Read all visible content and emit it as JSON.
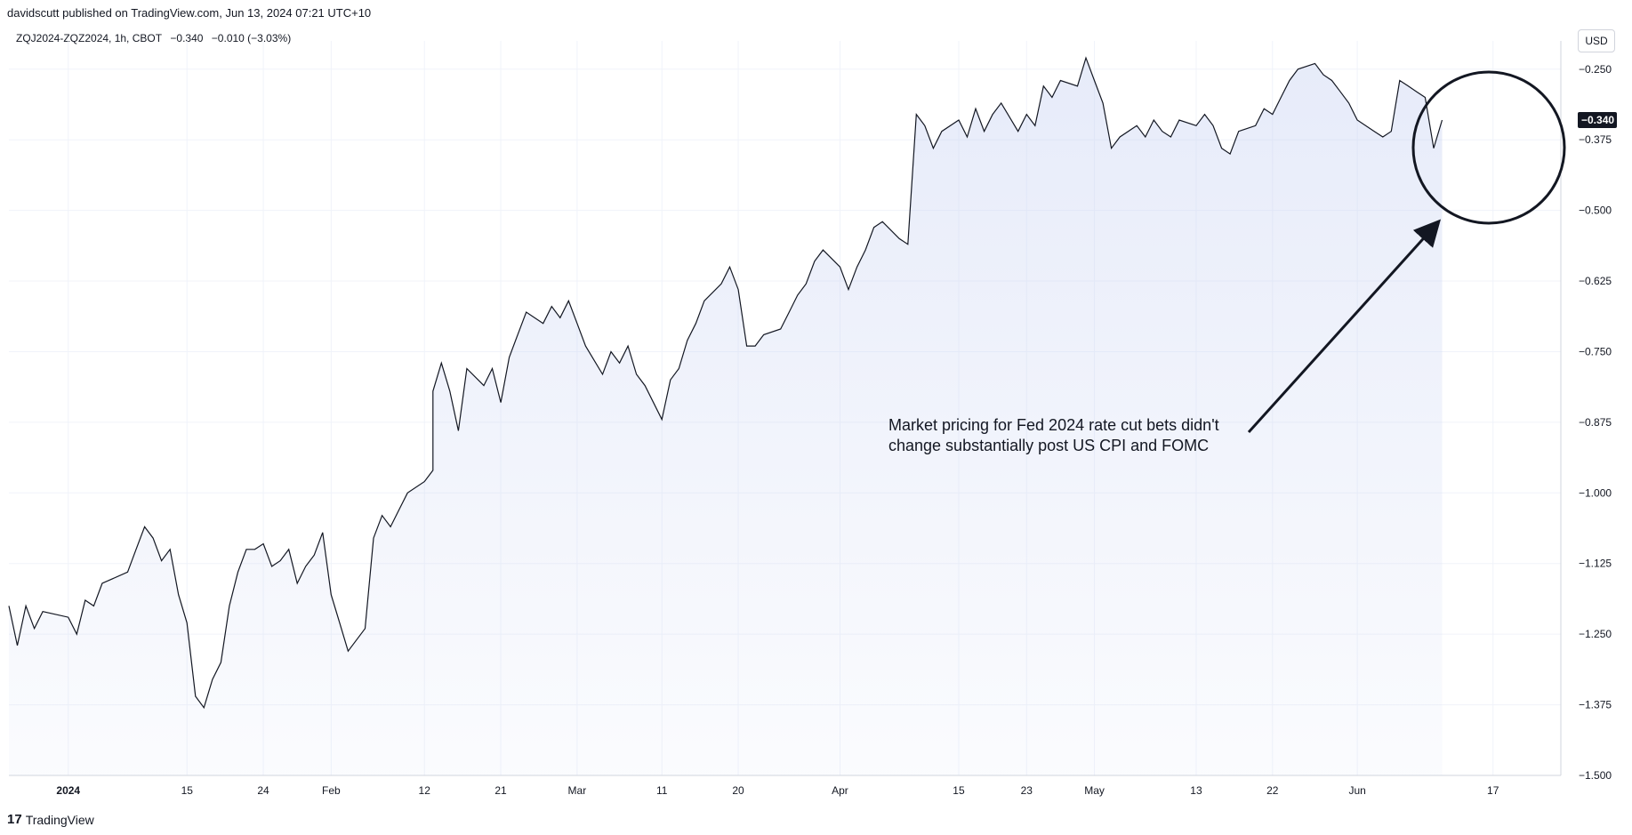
{
  "header": {
    "published": "davidscutt published on TradingView.com, Jun 13, 2024 07:21 UTC+10"
  },
  "legend": {
    "symbol": "ZQJ2024-ZQZ2024, 1h, CBOT",
    "last": "−0.340",
    "change": "−0.010 (−3.03%)"
  },
  "currency_button": "USD",
  "footer": {
    "brand": "TradingView",
    "logo_glyph": "17"
  },
  "colors": {
    "line": "#131722",
    "fill": "#c9d3f2",
    "grid": "#f0f3fa",
    "label_bg": "#131722"
  },
  "chart_data": {
    "type": "area",
    "title": "",
    "x_tick_labels": [
      "2024",
      "15",
      "24",
      "Feb",
      "12",
      "21",
      "Mar",
      "11",
      "20",
      "Apr",
      "15",
      "23",
      "May",
      "13",
      "22",
      "Jun",
      "17"
    ],
    "x_tick_dates": [
      "2024-01-01",
      "2024-01-15",
      "2024-01-24",
      "2024-02-01",
      "2024-02-12",
      "2024-02-21",
      "2024-03-01",
      "2024-03-11",
      "2024-03-20",
      "2024-04-01",
      "2024-04-15",
      "2024-04-23",
      "2024-05-01",
      "2024-05-13",
      "2024-05-22",
      "2024-06-01",
      "2024-06-17"
    ],
    "y_ticks": [
      "-0.250",
      "-0.375",
      "-0.500",
      "-0.625",
      "-0.750",
      "-0.875",
      "-1.000",
      "-1.125",
      "-1.250",
      "-1.375",
      "-1.500"
    ],
    "ylim": [
      -1.5,
      -0.2
    ],
    "xlim": [
      "2023-12-25",
      "2024-06-25"
    ],
    "last_value_label": "-0.340",
    "series": [
      {
        "values": [
          [
            "2023-12-25",
            -1.2
          ],
          [
            "2023-12-26",
            -1.27
          ],
          [
            "2023-12-27",
            -1.2
          ],
          [
            "2023-12-28",
            -1.24
          ],
          [
            "2023-12-29",
            -1.21
          ],
          [
            "2024-01-01",
            -1.22
          ],
          [
            "2024-01-02",
            -1.25
          ],
          [
            "2024-01-03",
            -1.19
          ],
          [
            "2024-01-04",
            -1.2
          ],
          [
            "2024-01-05",
            -1.16
          ],
          [
            "2024-01-08",
            -1.14
          ],
          [
            "2024-01-09",
            -1.1
          ],
          [
            "2024-01-10",
            -1.06
          ],
          [
            "2024-01-11",
            -1.08
          ],
          [
            "2024-01-12",
            -1.12
          ],
          [
            "2024-01-13",
            -1.1
          ],
          [
            "2024-01-14",
            -1.18
          ],
          [
            "2024-01-15",
            -1.23
          ],
          [
            "2024-01-16",
            -1.36
          ],
          [
            "2024-01-17",
            -1.38
          ],
          [
            "2024-01-18",
            -1.33
          ],
          [
            "2024-01-19",
            -1.3
          ],
          [
            "2024-01-20",
            -1.2
          ],
          [
            "2024-01-21",
            -1.14
          ],
          [
            "2024-01-22",
            -1.1
          ],
          [
            "2024-01-23",
            -1.1
          ],
          [
            "2024-01-24",
            -1.09
          ],
          [
            "2024-01-25",
            -1.13
          ],
          [
            "2024-01-26",
            -1.12
          ],
          [
            "2024-01-27",
            -1.1
          ],
          [
            "2024-01-28",
            -1.16
          ],
          [
            "2024-01-29",
            -1.13
          ],
          [
            "2024-01-30",
            -1.11
          ],
          [
            "2024-01-31",
            -1.07
          ],
          [
            "2024-02-01",
            -1.18
          ],
          [
            "2024-02-02",
            -1.23
          ],
          [
            "2024-02-03",
            -1.28
          ],
          [
            "2024-02-05",
            -1.24
          ],
          [
            "2024-02-06",
            -1.08
          ],
          [
            "2024-02-07",
            -1.04
          ],
          [
            "2024-02-08",
            -1.06
          ],
          [
            "2024-02-09",
            -1.03
          ],
          [
            "2024-02-10",
            -1.0
          ],
          [
            "2024-02-12",
            -0.98
          ],
          [
            "2024-02-13",
            -0.96
          ],
          [
            "2024-02-13",
            -0.82
          ],
          [
            "2024-02-14",
            -0.77
          ],
          [
            "2024-02-15",
            -0.82
          ],
          [
            "2024-02-16",
            -0.89
          ],
          [
            "2024-02-17",
            -0.78
          ],
          [
            "2024-02-19",
            -0.81
          ],
          [
            "2024-02-20",
            -0.78
          ],
          [
            "2024-02-21",
            -0.84
          ],
          [
            "2024-02-22",
            -0.76
          ],
          [
            "2024-02-23",
            -0.72
          ],
          [
            "2024-02-24",
            -0.68
          ],
          [
            "2024-02-26",
            -0.7
          ],
          [
            "2024-02-27",
            -0.67
          ],
          [
            "2024-02-28",
            -0.69
          ],
          [
            "2024-02-29",
            -0.66
          ],
          [
            "2024-03-01",
            -0.7
          ],
          [
            "2024-03-02",
            -0.74
          ],
          [
            "2024-03-04",
            -0.79
          ],
          [
            "2024-03-05",
            -0.75
          ],
          [
            "2024-03-06",
            -0.77
          ],
          [
            "2024-03-07",
            -0.74
          ],
          [
            "2024-03-08",
            -0.79
          ],
          [
            "2024-03-09",
            -0.81
          ],
          [
            "2024-03-11",
            -0.87
          ],
          [
            "2024-03-12",
            -0.8
          ],
          [
            "2024-03-13",
            -0.78
          ],
          [
            "2024-03-14",
            -0.73
          ],
          [
            "2024-03-15",
            -0.7
          ],
          [
            "2024-03-16",
            -0.66
          ],
          [
            "2024-03-18",
            -0.63
          ],
          [
            "2024-03-19",
            -0.6
          ],
          [
            "2024-03-20",
            -0.64
          ],
          [
            "2024-03-21",
            -0.74
          ],
          [
            "2024-03-22",
            -0.74
          ],
          [
            "2024-03-23",
            -0.72
          ],
          [
            "2024-03-25",
            -0.71
          ],
          [
            "2024-03-26",
            -0.68
          ],
          [
            "2024-03-27",
            -0.65
          ],
          [
            "2024-03-28",
            -0.63
          ],
          [
            "2024-03-29",
            -0.59
          ],
          [
            "2024-03-30",
            -0.57
          ],
          [
            "2024-04-01",
            -0.6
          ],
          [
            "2024-04-02",
            -0.64
          ],
          [
            "2024-04-03",
            -0.6
          ],
          [
            "2024-04-04",
            -0.57
          ],
          [
            "2024-04-05",
            -0.53
          ],
          [
            "2024-04-06",
            -0.52
          ],
          [
            "2024-04-08",
            -0.55
          ],
          [
            "2024-04-09",
            -0.56
          ],
          [
            "2024-04-10",
            -0.33
          ],
          [
            "2024-04-11",
            -0.35
          ],
          [
            "2024-04-12",
            -0.39
          ],
          [
            "2024-04-13",
            -0.36
          ],
          [
            "2024-04-15",
            -0.34
          ],
          [
            "2024-04-16",
            -0.37
          ],
          [
            "2024-04-17",
            -0.32
          ],
          [
            "2024-04-18",
            -0.36
          ],
          [
            "2024-04-19",
            -0.33
          ],
          [
            "2024-04-20",
            -0.31
          ],
          [
            "2024-04-22",
            -0.36
          ],
          [
            "2024-04-23",
            -0.33
          ],
          [
            "2024-04-24",
            -0.35
          ],
          [
            "2024-04-25",
            -0.28
          ],
          [
            "2024-04-26",
            -0.3
          ],
          [
            "2024-04-27",
            -0.27
          ],
          [
            "2024-04-29",
            -0.28
          ],
          [
            "2024-04-30",
            -0.23
          ],
          [
            "2024-05-01",
            -0.27
          ],
          [
            "2024-05-02",
            -0.31
          ],
          [
            "2024-05-03",
            -0.39
          ],
          [
            "2024-05-04",
            -0.37
          ],
          [
            "2024-05-06",
            -0.35
          ],
          [
            "2024-05-07",
            -0.37
          ],
          [
            "2024-05-08",
            -0.34
          ],
          [
            "2024-05-09",
            -0.36
          ],
          [
            "2024-05-10",
            -0.37
          ],
          [
            "2024-05-11",
            -0.34
          ],
          [
            "2024-05-13",
            -0.35
          ],
          [
            "2024-05-14",
            -0.33
          ],
          [
            "2024-05-15",
            -0.35
          ],
          [
            "2024-05-16",
            -0.39
          ],
          [
            "2024-05-17",
            -0.4
          ],
          [
            "2024-05-18",
            -0.36
          ],
          [
            "2024-05-20",
            -0.35
          ],
          [
            "2024-05-21",
            -0.32
          ],
          [
            "2024-05-22",
            -0.33
          ],
          [
            "2024-05-23",
            -0.3
          ],
          [
            "2024-05-24",
            -0.27
          ],
          [
            "2024-05-25",
            -0.25
          ],
          [
            "2024-05-27",
            -0.24
          ],
          [
            "2024-05-28",
            -0.26
          ],
          [
            "2024-05-29",
            -0.27
          ],
          [
            "2024-05-30",
            -0.29
          ],
          [
            "2024-05-31",
            -0.31
          ],
          [
            "2024-06-01",
            -0.34
          ],
          [
            "2024-06-03",
            -0.36
          ],
          [
            "2024-06-04",
            -0.37
          ],
          [
            "2024-06-05",
            -0.36
          ],
          [
            "2024-06-06",
            -0.27
          ],
          [
            "2024-06-07",
            -0.28
          ],
          [
            "2024-06-08",
            -0.29
          ],
          [
            "2024-06-09",
            -0.3
          ],
          [
            "2024-06-10",
            -0.39
          ],
          [
            "2024-06-11",
            -0.34
          ]
        ]
      }
    ],
    "annotation": {
      "line1": "Market pricing for Fed 2024 rate cut bets didn't",
      "line2": "change substantially post US CPI and FOMC"
    }
  }
}
